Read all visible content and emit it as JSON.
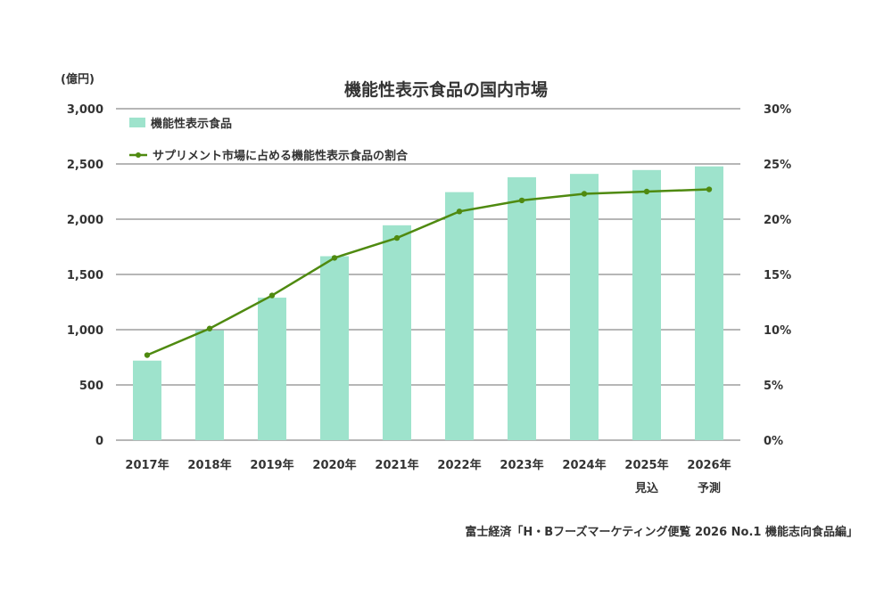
{
  "chart_data": {
    "type": "bar+line",
    "title": "機能性表示食品の国内市場",
    "y_unit": "(億円)",
    "categories": [
      "2017年",
      "2018年",
      "2019年",
      "2020年",
      "2021年",
      "2022年",
      "2023年",
      "2024年",
      "2025年",
      "2026年"
    ],
    "category_notes": [
      "",
      "",
      "",
      "",
      "",
      "",
      "",
      "",
      "見込",
      "予測"
    ],
    "series": [
      {
        "name": "機能性表示食品",
        "type": "bar",
        "axis": "left",
        "color": "#9ee3cc",
        "values": [
          720,
          995,
          1290,
          1665,
          1945,
          2245,
          2380,
          2410,
          2445,
          2478
        ]
      },
      {
        "name": "サプリメント市場に占める機能性表示食品の割合",
        "type": "line",
        "axis": "right",
        "color": "#4f8a10",
        "values": [
          7.7,
          10.1,
          13.1,
          16.5,
          18.3,
          20.7,
          21.7,
          22.3,
          22.5,
          22.7
        ]
      }
    ],
    "y_left": {
      "range": [
        0,
        3000
      ],
      "ticks": [
        "0",
        "500",
        "1,000",
        "1,500",
        "2,000",
        "2,500",
        "3,000"
      ]
    },
    "y_right": {
      "range": [
        0,
        30
      ],
      "ticks": [
        "0%",
        "5%",
        "10%",
        "15%",
        "20%",
        "25%",
        "30%"
      ]
    },
    "grid": true,
    "legend": "top-left",
    "source": "富士経済「H・Bフーズマーケティング便覧 2026 No.1 機能志向食品編」"
  }
}
